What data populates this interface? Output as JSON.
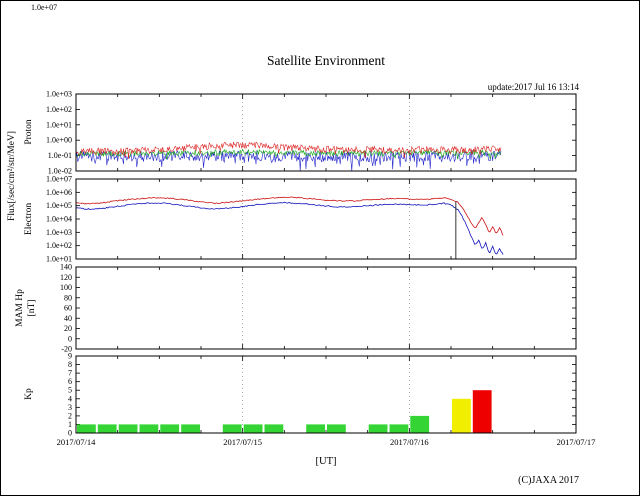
{
  "title": "Satellite Environment",
  "update_note": "update:2017 Jul 16 13:14",
  "copyright": "(C)JAXA 2017",
  "stray_top_label": "1.0e+07",
  "axis_labels": {
    "flux": "Flux[/sec/cm²/str/MeV]",
    "proton": "Proton",
    "electron": "Electron",
    "mam_hp": "MAM Hp",
    "mam_hp_unit": "[nT]",
    "kp": "Kp"
  },
  "x_axis": {
    "label": "[UT]",
    "tick_labels": [
      "2017/07/14",
      "2017/07/15",
      "2017/07/16",
      "2017/07/17"
    ],
    "tick_hours": [
      0,
      24,
      48,
      72
    ],
    "range_hours": [
      0,
      72
    ]
  },
  "chart_data": [
    {
      "name": "proton",
      "type": "line",
      "ylabel": "Proton flux",
      "yscale": "log",
      "ylim": [
        0.01,
        1000
      ],
      "ytick_values": [
        1000,
        100,
        10,
        1,
        0.1,
        0.01
      ],
      "ytick_labels": [
        "1.0e+03",
        "1.0e+02",
        "1.0e+01",
        "1.0e+00",
        "1.0e-01",
        "1.0e-02"
      ],
      "series": [
        {
          "name": "proton-blue",
          "color": "#2222cc",
          "width": 0.6,
          "noise": 0.35,
          "step": 0.12,
          "spikes": {
            "prob": 0.07,
            "depth": 0.8
          },
          "points": [
            [
              0,
              0.09
            ],
            [
              12,
              0.09
            ],
            [
              24,
              0.1
            ],
            [
              36,
              0.09
            ],
            [
              48,
              0.09
            ],
            [
              61.2,
              0.095
            ]
          ]
        },
        {
          "name": "proton-green",
          "color": "#19a919",
          "width": 0.6,
          "noise": 0.18,
          "step": 0.12,
          "spikes": {
            "prob": 0.04,
            "depth": 0.4
          },
          "points": [
            [
              0,
              0.13
            ],
            [
              12,
              0.14
            ],
            [
              20,
              0.16
            ],
            [
              24,
              0.17
            ],
            [
              28,
              0.16
            ],
            [
              34,
              0.14
            ],
            [
              42,
              0.14
            ],
            [
              50,
              0.15
            ],
            [
              61.2,
              0.15
            ]
          ]
        },
        {
          "name": "proton-red",
          "color": "#dd2222",
          "width": 0.6,
          "noise": 0.22,
          "step": 0.12,
          "spikes": {
            "prob": 0.05,
            "depth": 0.45
          },
          "points": [
            [
              0,
              0.18
            ],
            [
              4,
              0.2
            ],
            [
              8,
              0.19
            ],
            [
              12,
              0.25
            ],
            [
              16,
              0.32
            ],
            [
              20,
              0.42
            ],
            [
              22,
              0.48
            ],
            [
              24,
              0.45
            ],
            [
              26,
              0.5
            ],
            [
              28,
              0.42
            ],
            [
              30,
              0.35
            ],
            [
              34,
              0.28
            ],
            [
              38,
              0.24
            ],
            [
              42,
              0.25
            ],
            [
              46,
              0.22
            ],
            [
              50,
              0.25
            ],
            [
              54,
              0.24
            ],
            [
              58,
              0.25
            ],
            [
              61.2,
              0.26
            ]
          ]
        }
      ]
    },
    {
      "name": "electron",
      "type": "line",
      "ylabel": "Electron flux",
      "yscale": "log",
      "ylim": [
        10,
        10000000
      ],
      "ytick_values": [
        10000000,
        1000000,
        100000,
        10000,
        1000,
        100,
        10
      ],
      "ytick_labels": [
        "1.0e+07",
        "1.0e+06",
        "1.0e+05",
        "1.0e+04",
        "1.0e+03",
        "1.0e+02",
        "1.0e+01"
      ],
      "annotations": [
        {
          "type": "vline",
          "t": 54.7,
          "from": 200000,
          "to": 10
        }
      ],
      "series": [
        {
          "name": "electron-blue",
          "color": "#1111bb",
          "width": 0.8,
          "noise": 0.04,
          "step": 0.2,
          "points": [
            [
              0,
              65000
            ],
            [
              2,
              55000
            ],
            [
              4,
              65000
            ],
            [
              6,
              90000
            ],
            [
              8,
              120000
            ],
            [
              10,
              150000
            ],
            [
              12,
              160000
            ],
            [
              14,
              130000
            ],
            [
              16,
              95000
            ],
            [
              18,
              70000
            ],
            [
              20,
              55000
            ],
            [
              22,
              65000
            ],
            [
              24,
              85000
            ],
            [
              26,
              120000
            ],
            [
              28,
              150000
            ],
            [
              30,
              170000
            ],
            [
              32,
              150000
            ],
            [
              34,
              120000
            ],
            [
              36,
              95000
            ],
            [
              38,
              80000
            ],
            [
              40,
              85000
            ],
            [
              42,
              100000
            ],
            [
              44,
              120000
            ],
            [
              46,
              130000
            ],
            [
              48,
              120000
            ],
            [
              50,
              110000
            ],
            [
              52,
              130000
            ],
            [
              53,
              150000
            ],
            [
              54,
              110000
            ],
            [
              55,
              50000
            ],
            [
              55.5,
              20000
            ],
            [
              56,
              6000
            ],
            [
              56.5,
              1500
            ],
            [
              57,
              400
            ],
            [
              57.5,
              110
            ],
            [
              58,
              280
            ],
            [
              58.5,
              50
            ],
            [
              59,
              160
            ],
            [
              59.5,
              25
            ],
            [
              60,
              90
            ],
            [
              60.5,
              18
            ],
            [
              61,
              60
            ],
            [
              61.5,
              20
            ]
          ]
        },
        {
          "name": "electron-red",
          "color": "#cc1111",
          "width": 0.8,
          "noise": 0.04,
          "step": 0.2,
          "points": [
            [
              0,
              160000
            ],
            [
              2,
              140000
            ],
            [
              4,
              170000
            ],
            [
              6,
              240000
            ],
            [
              8,
              300000
            ],
            [
              10,
              360000
            ],
            [
              12,
              400000
            ],
            [
              14,
              340000
            ],
            [
              16,
              260000
            ],
            [
              18,
              190000
            ],
            [
              20,
              150000
            ],
            [
              22,
              180000
            ],
            [
              24,
              230000
            ],
            [
              26,
              300000
            ],
            [
              28,
              380000
            ],
            [
              30,
              440000
            ],
            [
              32,
              400000
            ],
            [
              34,
              320000
            ],
            [
              36,
              260000
            ],
            [
              38,
              220000
            ],
            [
              40,
              230000
            ],
            [
              42,
              270000
            ],
            [
              44,
              320000
            ],
            [
              46,
              350000
            ],
            [
              48,
              310000
            ],
            [
              50,
              290000
            ],
            [
              52,
              350000
            ],
            [
              53,
              390000
            ],
            [
              54,
              310000
            ],
            [
              55,
              180000
            ],
            [
              55.5,
              90000
            ],
            [
              56,
              35000
            ],
            [
              56.5,
              12000
            ],
            [
              57,
              4000
            ],
            [
              57.5,
              1800
            ],
            [
              58,
              5500
            ],
            [
              58.5,
              14000
            ],
            [
              59,
              3500
            ],
            [
              59.5,
              900
            ],
            [
              60,
              2800
            ],
            [
              60.5,
              700
            ],
            [
              61,
              2200
            ],
            [
              61.5,
              600
            ]
          ]
        }
      ]
    },
    {
      "name": "mam-hp",
      "type": "line",
      "ylabel": "MAM Hp [nT]",
      "yscale": "linear",
      "ylim": [
        -20,
        140
      ],
      "ytick_values": [
        140,
        120,
        100,
        80,
        60,
        40,
        20,
        0,
        -20
      ],
      "ytick_labels": [
        "140",
        "120",
        "100",
        "80",
        "60",
        "40",
        "20",
        "0",
        "-20"
      ],
      "series": []
    },
    {
      "name": "kp",
      "type": "bar",
      "ylabel": "Kp",
      "yscale": "linear",
      "ylim": [
        0,
        9
      ],
      "ytick_values": [
        9,
        8,
        7,
        6,
        5,
        4,
        3,
        2,
        1,
        0
      ],
      "ytick_labels": [
        "9",
        "8",
        "7",
        "6",
        "5",
        "4",
        "3",
        "2",
        "1",
        "0"
      ],
      "bin_hours": 3,
      "values": [
        1,
        1,
        1,
        1,
        1,
        1,
        null,
        1,
        1,
        1,
        null,
        1,
        1,
        null,
        1,
        1,
        2,
        null,
        4,
        5
      ],
      "thresholds": {
        "yellow": 4,
        "red": 5
      },
      "colors": {
        "green": "#33d433",
        "yellow": "#f2ee00",
        "red": "#ee0000"
      }
    }
  ]
}
